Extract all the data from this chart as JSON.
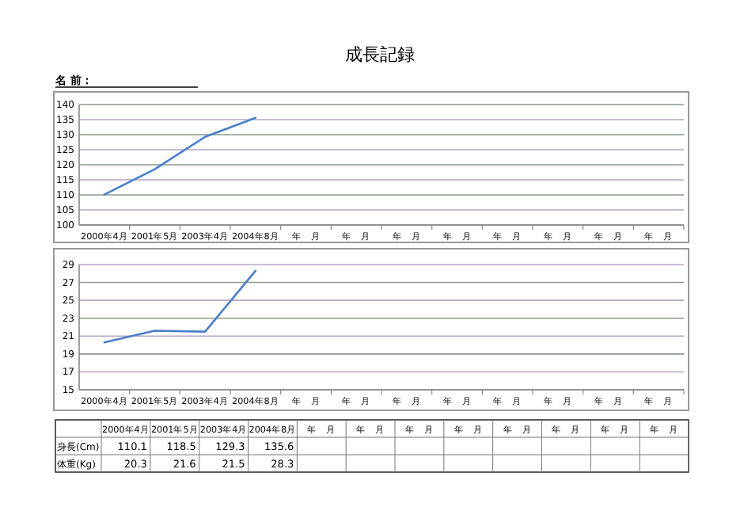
{
  "chart_data": [
    {
      "type": "line",
      "title": "成長記録",
      "annotations": [
        "名 前："
      ],
      "categories": [
        "2000年4月",
        "2001年5月",
        "2003年4月",
        "2004年8月",
        "年　月",
        "年　月",
        "年　月",
        "年　月",
        "年　月",
        "年　月",
        "年　月",
        "年　月"
      ],
      "series": [
        {
          "color": "#4a7fc8",
          "values": [
            110.1,
            118.5,
            129.3,
            135.6,
            null,
            null,
            null,
            null,
            null,
            null,
            null,
            null
          ]
        }
      ],
      "ylim": [
        100,
        140
      ],
      "yticks": [
        100,
        105,
        110,
        115,
        120,
        125,
        130,
        135,
        140
      ],
      "grid": "y",
      "marker": "none",
      "line_style": "solid"
    },
    {
      "type": "line",
      "categories": [
        "2000年4月",
        "2001年5月",
        "2003年4月",
        "2004年8月",
        "年　月",
        "年　月",
        "年　月",
        "年　月",
        "年　月",
        "年　月",
        "年　月",
        "年　月"
      ],
      "series": [
        {
          "color": "#4a7fc8",
          "values": [
            20.3,
            21.6,
            21.5,
            28.3,
            null,
            null,
            null,
            null,
            null,
            null,
            null,
            null
          ]
        }
      ],
      "ylim": [
        15,
        29
      ],
      "yticks": [
        15,
        17,
        19,
        21,
        23,
        25,
        27,
        29
      ],
      "grid": "y",
      "marker": "none",
      "line_style": "solid"
    },
    {
      "type": "other",
      "categories": [
        "2000年4月",
        "2001年5月",
        "2003年4月",
        "2004年8月",
        "年　月",
        "年　月",
        "年　月",
        "年　月",
        "年　月",
        "年　月",
        "年　月",
        "年　月"
      ],
      "series": [
        {
          "name": "身長(Cm)",
          "values": [
            110.1,
            118.5,
            129.3,
            135.6,
            null,
            null,
            null,
            null,
            null,
            null,
            null,
            null
          ],
          "value_labels": [
            "110.1",
            "118.5",
            "129.3",
            "135.6",
            null,
            null,
            null,
            null,
            null,
            null,
            null,
            null
          ]
        },
        {
          "name": "体重(Kg)",
          "values": [
            20.3,
            21.6,
            21.5,
            28.3,
            null,
            null,
            null,
            null,
            null,
            null,
            null,
            null
          ],
          "value_labels": [
            "20.3",
            "21.6",
            "21.5",
            "28.3",
            null,
            null,
            null,
            null,
            null,
            null,
            null,
            null
          ]
        }
      ]
    }
  ]
}
